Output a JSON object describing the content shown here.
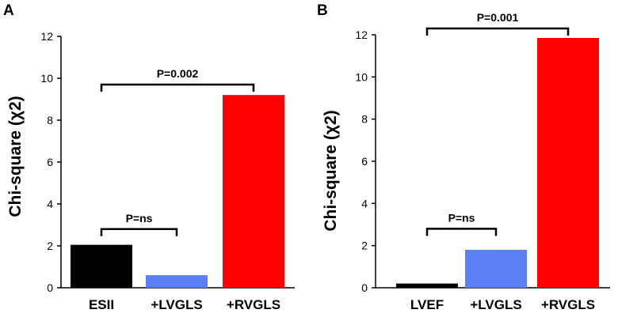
{
  "chart_data": [
    {
      "type": "bar",
      "panel": "A",
      "categories": [
        "ESII",
        "+LVGLS",
        "+RVGLS"
      ],
      "values": [
        2.05,
        0.6,
        9.2
      ],
      "colors": [
        "#000000",
        "#5b7ff5",
        "#ff0000"
      ],
      "ylabel": "Chi-square (χ2)",
      "xlabel": "",
      "ylim": [
        0,
        12
      ],
      "yticks": [
        0,
        2,
        4,
        6,
        8,
        10,
        12
      ],
      "annotations": [
        {
          "text": "P=ns",
          "from": 0,
          "to": 1,
          "level": 2.8
        },
        {
          "text": "P=0.002",
          "from": 0,
          "to": 2,
          "level": 9.7
        }
      ]
    },
    {
      "type": "bar",
      "panel": "B",
      "categories": [
        "LVEF",
        "+LVGLS",
        "+RVGLS"
      ],
      "values": [
        0.2,
        1.8,
        11.85
      ],
      "colors": [
        "#000000",
        "#5b7ff5",
        "#ff0000"
      ],
      "ylabel": "Chi-square (χ2)",
      "xlabel": "",
      "ylim": [
        0,
        12
      ],
      "yticks": [
        0,
        2,
        4,
        6,
        8,
        10,
        12
      ],
      "annotations": [
        {
          "text": "P=ns",
          "from": 0,
          "to": 1,
          "level": 2.8
        },
        {
          "text": "P=0.001",
          "from": 0,
          "to": 2,
          "level": 12.4
        }
      ]
    }
  ]
}
